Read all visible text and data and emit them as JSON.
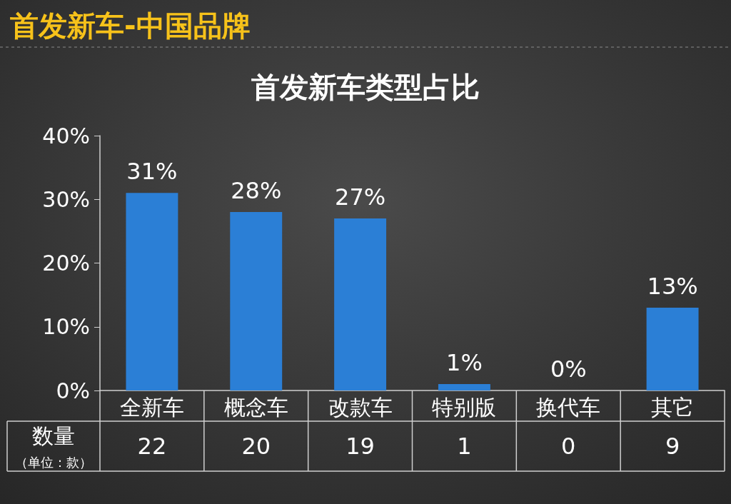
{
  "chart_data": {
    "type": "bar",
    "title": "首发新车-中国品牌",
    "subtitle": "首发新车类型占比",
    "categories": [
      "全新车",
      "概念车",
      "改款车",
      "特别版",
      "换代车",
      "其它"
    ],
    "values": [
      31,
      28,
      27,
      1,
      0,
      13
    ],
    "value_labels": [
      "31%",
      "28%",
      "27%",
      "1%",
      "0%",
      "13%"
    ],
    "color": "#2b7fd6",
    "ylim": [
      0,
      40
    ],
    "yticks": [
      {
        "value": 0,
        "label": "0%"
      },
      {
        "value": 10,
        "label": "10%"
      },
      {
        "value": 20,
        "label": "20%"
      },
      {
        "value": 30,
        "label": "30%"
      },
      {
        "value": 40,
        "label": "40%"
      }
    ],
    "grid": false,
    "annotations": [
      "数量",
      "（单位：款）",
      "22",
      "20",
      "19",
      "1",
      "0",
      "9"
    ]
  }
}
